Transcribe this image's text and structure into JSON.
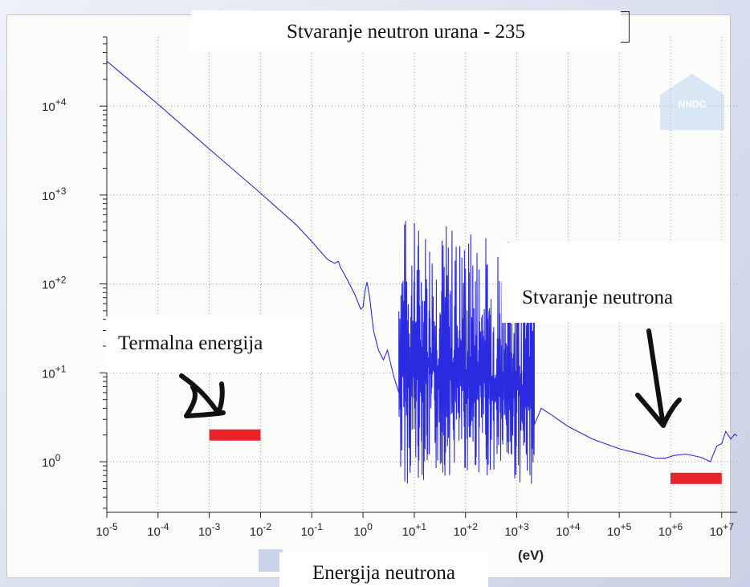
{
  "title": "Stvaranje neutron urana - 235",
  "annotations": {
    "thermal": "Termalna energija",
    "production": "Stvaranje neutrona"
  },
  "x_axis_title": "Energija neutrona",
  "x_unit": "(eV)",
  "logo_text": "NNDC",
  "colors": {
    "curve": "#2a2ae0",
    "marker": "#e8232b",
    "arrow": "#111111",
    "grid": "#999999"
  },
  "chart_data": {
    "type": "line",
    "x_scale": "log",
    "y_scale": "log",
    "xlim": [
      1e-05,
      20000000.0
    ],
    "ylim": [
      0.27,
      60000
    ],
    "grid": true,
    "x_ticks": [
      {
        "exp": "-5",
        "value": 1e-05
      },
      {
        "exp": "-4",
        "value": 0.0001
      },
      {
        "exp": "-3",
        "value": 0.001
      },
      {
        "exp": "-2",
        "value": 0.01
      },
      {
        "exp": "-1",
        "value": 0.1
      },
      {
        "exp": "0",
        "value": 1
      },
      {
        "exp": "+1",
        "value": 10
      },
      {
        "exp": "+2",
        "value": 100
      },
      {
        "exp": "+3",
        "value": 1000
      },
      {
        "exp": "+4",
        "value": 10000.0
      },
      {
        "exp": "+5",
        "value": 100000.0
      },
      {
        "exp": "+6",
        "value": 1000000.0
      },
      {
        "exp": "+7",
        "value": 10000000.0
      }
    ],
    "y_ticks": [
      {
        "exp": "0",
        "value": 1
      },
      {
        "exp": "+1",
        "value": 10
      },
      {
        "exp": "+2",
        "value": 100
      },
      {
        "exp": "+3",
        "value": 1000
      },
      {
        "exp": "+4",
        "value": 10000
      }
    ],
    "series": [
      {
        "smooth_points": [
          [
            1e-05,
            32000
          ],
          [
            0.0001,
            10500
          ],
          [
            0.001,
            3300
          ],
          [
            0.01,
            1050
          ],
          [
            0.05,
            460
          ],
          [
            0.1,
            300
          ],
          [
            0.2,
            190
          ],
          [
            0.28,
            170
          ],
          [
            0.33,
            180
          ],
          [
            0.36,
            155
          ],
          [
            0.5,
            110
          ],
          [
            0.7,
            75
          ],
          [
            0.9,
            52
          ],
          [
            1.0,
            55
          ],
          [
            1.1,
            85
          ],
          [
            1.2,
            105
          ],
          [
            1.35,
            70
          ],
          [
            1.6,
            30
          ],
          [
            2.0,
            18
          ],
          [
            2.5,
            14
          ],
          [
            3.0,
            18
          ],
          [
            4.0,
            9
          ],
          [
            5.0,
            6
          ]
        ],
        "resonance_range": [
          5,
          2200
        ],
        "resonance_min": 0.5,
        "resonance_max": 700,
        "tail_points": [
          [
            2200,
            2.6
          ],
          [
            3000,
            4.0
          ],
          [
            5000,
            3.3
          ],
          [
            10000.0,
            2.5
          ],
          [
            30000.0,
            1.8
          ],
          [
            100000.0,
            1.4
          ],
          [
            300000.0,
            1.2
          ],
          [
            500000.0,
            1.1
          ],
          [
            800000.0,
            1.1
          ],
          [
            1200000.0,
            1.18
          ],
          [
            2000000.0,
            1.22
          ],
          [
            4000000.0,
            1.12
          ],
          [
            6000000.0,
            1.0
          ],
          [
            8000000.0,
            1.5
          ],
          [
            10000000.0,
            1.6
          ],
          [
            12000000.0,
            2.2
          ],
          [
            15000000.0,
            1.8
          ],
          [
            18000000.0,
            2.05
          ],
          [
            20000000.0,
            1.95
          ]
        ]
      }
    ],
    "markers": [
      {
        "name": "thermal",
        "x_from": 0.001,
        "x_to": 0.01,
        "y": 2.0
      },
      {
        "name": "fission",
        "x_from": 1000000.0,
        "x_to": 10000000.0,
        "y": 0.65
      }
    ]
  }
}
